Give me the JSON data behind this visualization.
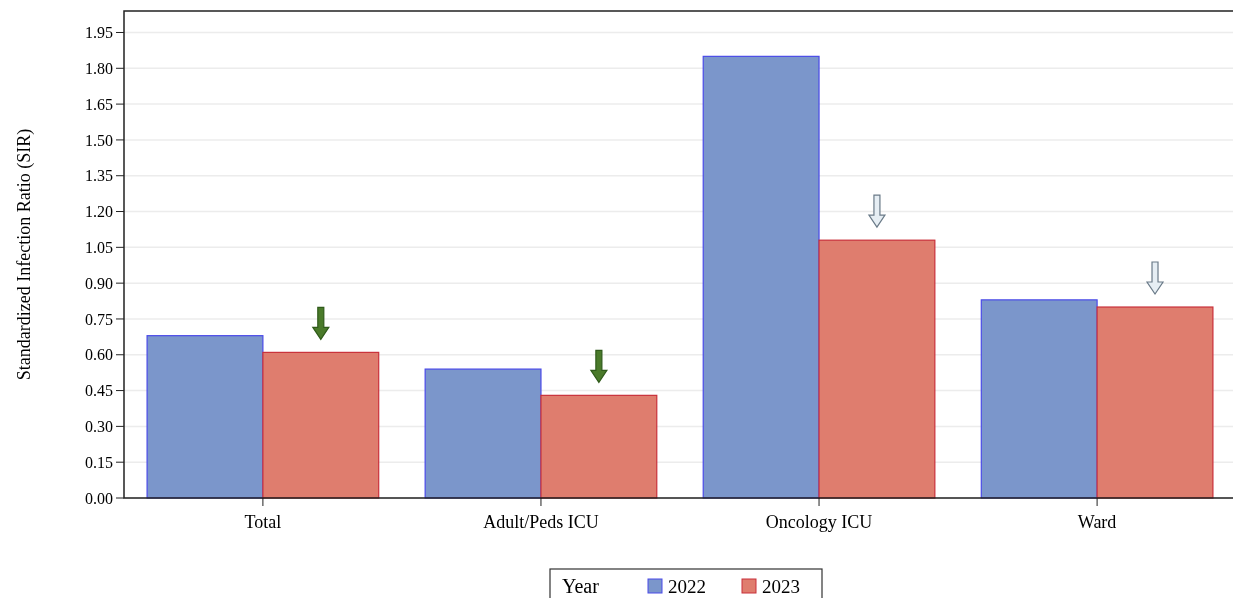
{
  "chart_data": {
    "type": "bar",
    "ylabel": "Standardized Infection Ratio (SIR)",
    "legend_title": "Year",
    "categories": [
      "Total",
      "Adult/Peds ICU",
      "Oncology ICU",
      "Ward"
    ],
    "series": [
      {
        "name": "2022",
        "color": "#7b96cb",
        "values": [
          0.68,
          0.54,
          1.85,
          0.83
        ]
      },
      {
        "name": "2023",
        "color": "#df7d6e",
        "values": [
          0.61,
          0.43,
          1.08,
          0.8
        ]
      }
    ],
    "ylim": [
      0,
      2.04
    ],
    "yticks": [
      {
        "value": 0,
        "label": "0.00"
      },
      {
        "value": 0.15,
        "label": "0.15"
      },
      {
        "value": 0.3,
        "label": "0.30"
      },
      {
        "value": 0.45,
        "label": "0.45"
      },
      {
        "value": 0.6,
        "label": "0.60"
      },
      {
        "value": 0.75,
        "label": "0.75"
      },
      {
        "value": 0.9,
        "label": "0.90"
      },
      {
        "value": 1.05,
        "label": "1.05"
      },
      {
        "value": 1.2,
        "label": "1.20"
      },
      {
        "value": 1.35,
        "label": "1.35"
      },
      {
        "value": 1.5,
        "label": "1.50"
      },
      {
        "value": 1.65,
        "label": "1.65"
      },
      {
        "value": 1.8,
        "label": "1.80"
      },
      {
        "value": 1.95,
        "label": "1.95"
      }
    ],
    "grid": "y",
    "legend": "bottom"
  }
}
